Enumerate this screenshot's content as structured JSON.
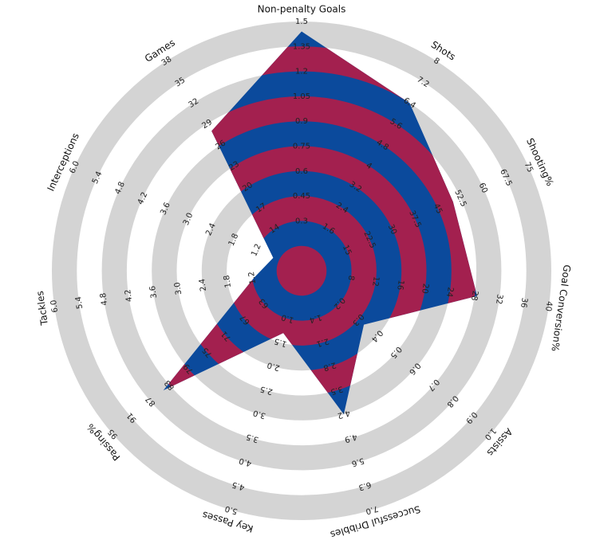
{
  "chart_data": {
    "type": "radar",
    "params": [
      "Non-penalty Goals",
      "Shots",
      "Shooting%",
      "Goal Conversion%",
      "Assists",
      "Successful Dribbles",
      "Key Passes",
      "Passing%",
      "Tackles",
      "Interceptions",
      "Games"
    ],
    "ranges": [
      [
        0,
        1.5
      ],
      [
        0,
        8
      ],
      [
        0,
        75
      ],
      [
        0,
        40
      ],
      [
        0,
        1
      ],
      [
        0,
        7
      ],
      [
        0,
        5
      ],
      [
        55,
        95
      ],
      [
        0,
        6
      ],
      [
        0,
        6
      ],
      [
        8,
        38
      ]
    ],
    "ticks": [
      [
        0.3,
        0.45,
        0.6,
        0.75,
        0.9,
        1.05,
        1.2,
        1.35,
        1.5
      ],
      [
        1.6,
        2.4,
        3.2,
        4,
        4.8,
        5.6,
        6.4,
        7.2,
        8
      ],
      [
        15,
        22.5,
        30,
        37.5,
        45,
        52.5,
        60,
        67.5,
        75
      ],
      [
        8,
        12,
        16,
        20,
        24,
        28,
        32,
        36,
        40
      ],
      [
        0.2,
        0.3,
        0.4,
        0.5,
        0.6,
        0.7,
        0.8,
        0.9,
        {
          "value": 1,
          "label": "1.0"
        }
      ],
      [
        1.4,
        2.1,
        2.8,
        3.5,
        4.2,
        4.9,
        5.6,
        6.3,
        {
          "value": 7,
          "label": "7.0"
        }
      ],
      [
        {
          "value": 1,
          "label": "1.0"
        },
        1.5,
        {
          "value": 2,
          "label": "2.0"
        },
        2.5,
        {
          "value": 3,
          "label": "3.0"
        },
        3.5,
        {
          "value": 4,
          "label": "4.0"
        },
        4.5,
        {
          "value": 5,
          "label": "5.0"
        }
      ],
      [
        63,
        67,
        71,
        75,
        79,
        83,
        87,
        91,
        95
      ],
      [
        1.2,
        1.8,
        2.4,
        {
          "value": 3,
          "label": "3.0"
        },
        3.6,
        4.2,
        4.8,
        5.4,
        {
          "value": 6,
          "label": "6.0"
        }
      ],
      [
        1.2,
        1.8,
        2.4,
        {
          "value": 3,
          "label": "3.0"
        },
        3.6,
        4.2,
        4.8,
        5.4,
        {
          "value": 6,
          "label": "6.0"
        }
      ],
      [
        14,
        17,
        20,
        23,
        26,
        29,
        32,
        35,
        38
      ]
    ],
    "values": [
      1.44,
      6.4,
      50,
      28.4,
      0.33,
      4.2,
      1.3,
      84.3,
      1.15,
      0.75,
      28
    ],
    "colors": [
      "#0b4a9c",
      "#a3204f"
    ],
    "ring_color": "#d4d4d4"
  }
}
